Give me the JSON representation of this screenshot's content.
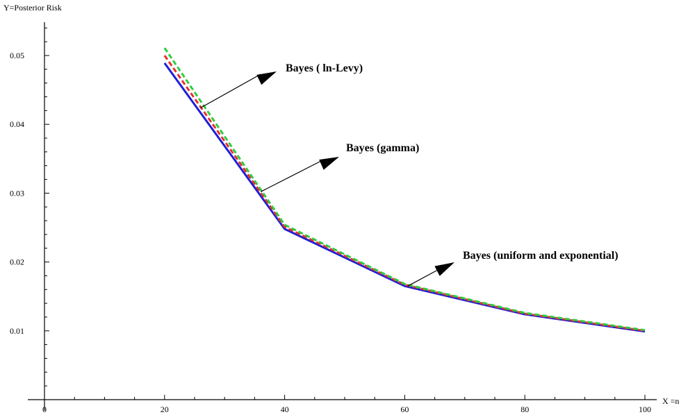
{
  "chart_data": {
    "type": "line",
    "title": "",
    "xlabel": "X =n",
    "ylabel": "Y=Posterior Risk",
    "xlim": [
      0,
      100
    ],
    "ylim": [
      0,
      0.055
    ],
    "x_ticks_major": [
      0,
      20,
      40,
      60,
      80,
      100
    ],
    "x_tick_labels": [
      "0",
      "20",
      "40",
      "60",
      "80",
      "100"
    ],
    "y_ticks_major": [
      0.01,
      0.02,
      0.03,
      0.04,
      0.05
    ],
    "y_tick_labels": [
      "0.01",
      "0.02",
      "0.03",
      "0.04",
      "0.05"
    ],
    "grid": false,
    "legend": "none",
    "x": [
      20,
      40,
      60,
      80,
      100
    ],
    "series": [
      {
        "color": "#1f1fd6",
        "dash": "solid",
        "values": [
          0.0489,
          0.0248,
          0.0165,
          0.0124,
          0.0099
        ]
      },
      {
        "color": "#e53030",
        "dash": "dashed",
        "values": [
          0.05,
          0.0251,
          0.0167,
          0.0125,
          0.01
        ]
      },
      {
        "color": "#2ecc40",
        "dash": "dashed",
        "values": [
          0.0511,
          0.0254,
          0.0168,
          0.0126,
          0.0101
        ]
      }
    ],
    "annotations": [
      {
        "text": "Bayes ( ln-Levy)",
        "point": [
          26,
          0.0424
        ]
      },
      {
        "text": "Bayes (gamma)",
        "point": [
          36,
          0.0302
        ]
      },
      {
        "text": "Bayes (uniform and exponential)",
        "point": [
          60.5,
          0.0165
        ]
      }
    ]
  }
}
